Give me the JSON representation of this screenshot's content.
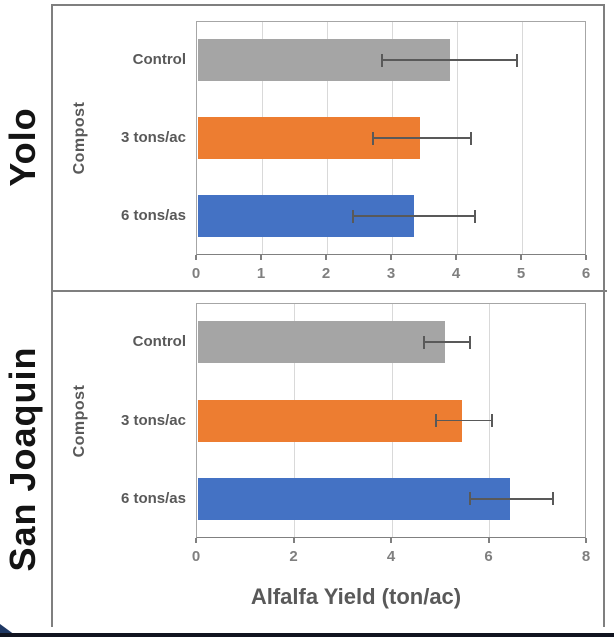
{
  "colors": {
    "bar_gray": "#a5a5a5",
    "bar_orange": "#ed7d31",
    "bar_blue": "#4472c4",
    "error_bar": "#595959",
    "category_text": "#595959",
    "tick_text": "#7f7f7f",
    "county_text": "#141414",
    "frame_border": "#7f7f7f",
    "plot_border": "#a6a6a6",
    "gridline": "#d9d9d9",
    "bottom_edge": "#11141f"
  },
  "chart_data": [
    {
      "type": "bar",
      "orientation": "horizontal",
      "group_label": "Yolo",
      "ylabel": "Compost",
      "xlabel": "",
      "categories": [
        "Control",
        "3 tons/ac",
        "6 tons/as"
      ],
      "values": [
        3.9,
        3.45,
        3.35
      ],
      "error_minus": [
        1.05,
        0.75,
        0.95
      ],
      "error_plus": [
        1.05,
        0.8,
        0.95
      ],
      "bar_colors": [
        "#a5a5a5",
        "#ed7d31",
        "#4472c4"
      ],
      "xlim": [
        0,
        6
      ],
      "xticks": [
        0,
        1,
        2,
        3,
        4,
        5,
        6
      ],
      "grid": true,
      "legend": "none"
    },
    {
      "type": "bar",
      "orientation": "horizontal",
      "group_label": "San Joaquin",
      "ylabel": "Compost",
      "xlabel": "Alfalfa Yield (ton/ac)",
      "categories": [
        "Control",
        "3 tons/ac",
        "6 tons/as"
      ],
      "values": [
        5.1,
        5.45,
        6.45
      ],
      "error_minus": [
        0.45,
        0.55,
        0.85
      ],
      "error_plus": [
        0.55,
        0.65,
        0.9
      ],
      "bar_colors": [
        "#a5a5a5",
        "#ed7d31",
        "#4472c4"
      ],
      "xlim": [
        0,
        8
      ],
      "xticks": [
        0,
        2,
        4,
        6,
        8
      ],
      "grid": true,
      "legend": "none"
    }
  ]
}
